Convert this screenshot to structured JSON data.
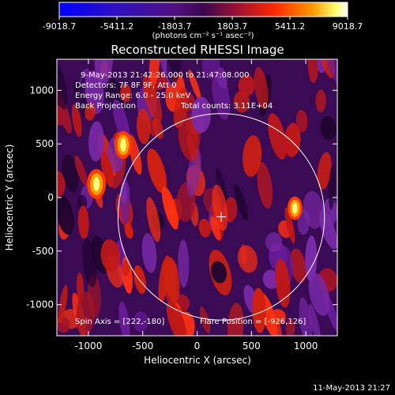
{
  "colorbar": {
    "tick_labels": [
      "-9018.7",
      "-5411.2",
      "-1803.7",
      "1803.7",
      "5411.2",
      "9018.7"
    ],
    "units_label": "(photons cm⁻² s⁻¹ asec⁻²)"
  },
  "plot": {
    "title": "Reconstructed RHESSI Image",
    "x_axis_label": "Heliocentric X (arcsec)",
    "y_axis_label": "Heliocentric Y (arcsec)",
    "x_tick_labels": [
      "-1000",
      "-500",
      "0",
      "500",
      "1000"
    ],
    "y_tick_labels": [
      "1000",
      "500",
      "0",
      "-500",
      "-1000"
    ]
  },
  "annotations": {
    "time_range": "9-May-2013 21:42:26.000 to 21:47:08.000",
    "detectors": "Detectors: 7F 8F 9F, Att 0",
    "energy_range": "Energy Range: 6.0 - 25.0 keV",
    "method": "Back Projection",
    "total_counts": "Total counts: 3.11E+04",
    "spin_axis": "Spin Axis = [222,-180]",
    "flare_position": "Flare Position = [-926,126]"
  },
  "footer": {
    "timestamp": "11-May-2013 21:27"
  },
  "colors": {
    "background": "#000000",
    "text": "#ffffff",
    "colormap": [
      "#0000ff",
      "#5020a0",
      "#3a1060",
      "#701060",
      "#c01010",
      "#ff2a00",
      "#ff9a00",
      "#ffff60",
      "#ffffff"
    ]
  },
  "chart_data": {
    "type": "heatmap",
    "title": "Reconstructed RHESSI Image",
    "xlabel": "Heliocentric X (arcsec)",
    "ylabel": "Heliocentric Y (arcsec)",
    "xlim": [
      -1290,
      1290
    ],
    "ylim": [
      -1290,
      1290
    ],
    "x_ticks": [
      -1000,
      -500,
      0,
      500,
      1000
    ],
    "y_ticks": [
      -1000,
      -500,
      0,
      500,
      1000
    ],
    "colorbar_range": [
      -9018.7,
      9018.7
    ],
    "colorbar_ticks": [
      -9018.7,
      -5411.2,
      -1803.7,
      1803.7,
      5411.2,
      9018.7
    ],
    "solar_limb": {
      "center": [
        222,
        -180
      ],
      "radius": 950
    },
    "spin_axis": [
      222,
      -180
    ],
    "flare_position": [
      -926,
      126
    ],
    "bright_sources": [
      {
        "x": -926,
        "y": 126,
        "intensity": 9000
      },
      {
        "x": -680,
        "y": 490,
        "intensity": 8200
      },
      {
        "x": 900,
        "y": -100,
        "intensity": 6500
      }
    ]
  }
}
